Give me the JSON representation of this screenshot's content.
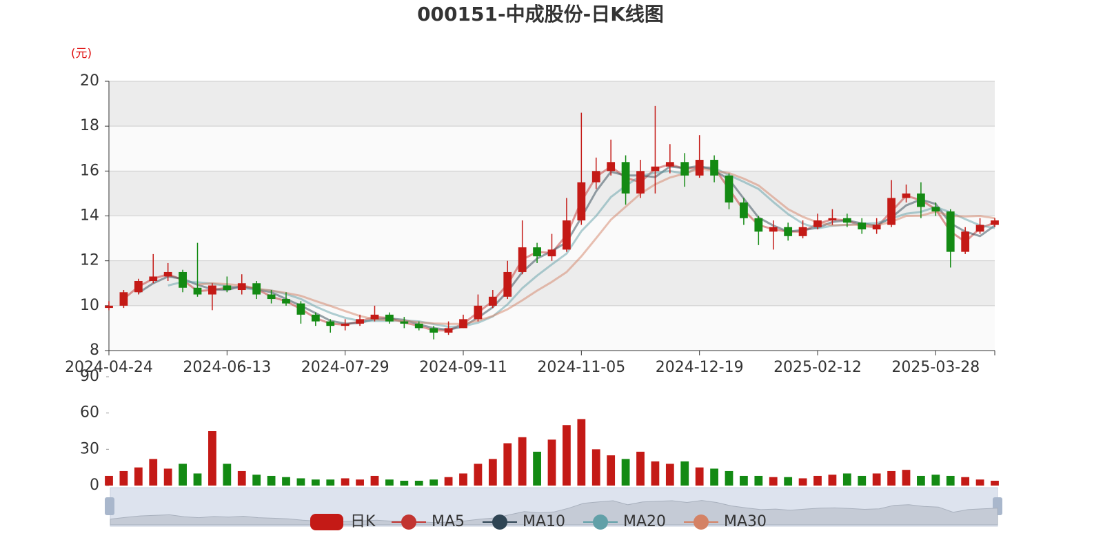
{
  "chart_data": {
    "type": "candlestick",
    "title": "000151-中成股份-日K线图",
    "y_unit": "(元)",
    "categories": [
      "2024-04-24",
      null,
      null,
      null,
      null,
      null,
      null,
      null,
      "2024-06-13",
      null,
      null,
      null,
      null,
      null,
      null,
      null,
      "2024-07-29",
      null,
      null,
      null,
      null,
      null,
      null,
      null,
      "2024-09-11",
      null,
      null,
      null,
      null,
      null,
      null,
      null,
      "2024-11-05",
      null,
      null,
      null,
      null,
      null,
      null,
      null,
      "2024-12-19",
      null,
      null,
      null,
      null,
      null,
      null,
      null,
      "2025-02-12",
      null,
      null,
      null,
      null,
      null,
      null,
      null,
      "2025-03-28",
      null,
      null,
      null,
      null
    ],
    "ylim": [
      8,
      20
    ],
    "yticks": [
      8,
      10,
      12,
      14,
      16,
      18,
      20
    ],
    "grid": true,
    "series": [
      {
        "name": "日K",
        "color": "#c41a16",
        "down_color": "#138a13",
        "open": [
          9.9,
          10.0,
          10.6,
          11.1,
          11.3,
          11.5,
          10.8,
          10.5,
          10.9,
          10.7,
          11.0,
          10.5,
          10.3,
          10.1,
          9.6,
          9.3,
          9.1,
          9.2,
          9.4,
          9.6,
          9.3,
          9.2,
          9.0,
          8.8,
          9.0,
          9.4,
          10.0,
          10.4,
          11.5,
          12.6,
          12.2,
          12.5,
          13.8,
          15.5,
          16.0,
          16.4,
          15.0,
          16.0,
          16.2,
          16.4,
          15.8,
          16.5,
          15.8,
          14.6,
          13.9,
          13.3,
          13.5,
          13.1,
          13.5,
          13.8,
          13.9,
          13.7,
          13.4,
          13.6,
          14.8,
          15.0,
          14.4,
          14.2,
          12.4,
          13.3,
          13.6
        ],
        "close": [
          10.0,
          10.6,
          11.1,
          11.3,
          11.5,
          10.8,
          10.5,
          10.9,
          10.7,
          11.0,
          10.5,
          10.3,
          10.1,
          9.6,
          9.3,
          9.1,
          9.2,
          9.4,
          9.6,
          9.3,
          9.2,
          9.0,
          8.8,
          9.0,
          9.4,
          10.0,
          10.4,
          11.5,
          12.6,
          12.2,
          12.5,
          13.8,
          15.5,
          16.0,
          16.4,
          15.0,
          16.0,
          16.2,
          16.4,
          15.8,
          16.5,
          15.8,
          14.6,
          13.9,
          13.3,
          13.5,
          13.1,
          13.5,
          13.8,
          13.9,
          13.7,
          13.4,
          13.6,
          14.8,
          15.0,
          14.4,
          14.2,
          12.4,
          13.3,
          13.6,
          13.8
        ],
        "high": [
          10.2,
          10.7,
          11.2,
          12.3,
          11.9,
          11.6,
          12.8,
          11.0,
          11.3,
          11.4,
          11.1,
          10.7,
          10.6,
          10.2,
          9.7,
          9.4,
          9.4,
          9.6,
          10.0,
          9.7,
          9.5,
          9.3,
          9.1,
          9.3,
          9.6,
          10.5,
          10.7,
          12.0,
          13.8,
          12.8,
          13.2,
          14.8,
          18.6,
          16.6,
          17.4,
          16.7,
          16.5,
          18.9,
          17.2,
          16.8,
          17.6,
          16.7,
          15.9,
          14.8,
          14.0,
          13.8,
          13.7,
          13.8,
          14.1,
          14.3,
          14.1,
          13.9,
          13.9,
          15.6,
          15.4,
          15.5,
          14.6,
          14.3,
          13.5,
          13.9,
          13.9
        ],
        "low": [
          9.8,
          9.9,
          10.5,
          11.0,
          11.1,
          10.6,
          10.4,
          9.8,
          10.6,
          10.5,
          10.3,
          10.1,
          10.0,
          9.2,
          9.1,
          8.8,
          8.9,
          9.1,
          9.3,
          9.2,
          9.0,
          8.9,
          8.5,
          8.7,
          9.0,
          9.3,
          9.9,
          10.3,
          11.4,
          11.9,
          12.0,
          12.4,
          13.6,
          15.2,
          15.8,
          14.5,
          14.8,
          15.0,
          15.9,
          15.3,
          15.7,
          15.5,
          14.3,
          13.6,
          12.7,
          12.5,
          12.9,
          13.0,
          13.4,
          13.6,
          13.5,
          13.2,
          13.2,
          13.5,
          14.6,
          13.9,
          14.0,
          11.7,
          12.3,
          13.2,
          13.5
        ]
      },
      {
        "name": "MA5",
        "color": "#c23531",
        "values": [
          null,
          10.3,
          10.85,
          11.2,
          11.4,
          11.15,
          10.65,
          10.7,
          10.8,
          10.85,
          10.75,
          10.4,
          10.2,
          9.85,
          9.45,
          9.2,
          9.15,
          9.3,
          9.5,
          9.45,
          9.25,
          9.1,
          8.9,
          8.9,
          9.2,
          9.7,
          10.2,
          10.95,
          12.05,
          12.4,
          12.35,
          13.15,
          14.65,
          15.75,
          16.2,
          15.7,
          15.5,
          16.1,
          16.3,
          16.1,
          16.15,
          16.15,
          15.2,
          14.25,
          13.6,
          13.4,
          13.3,
          13.3,
          13.65,
          13.85,
          13.8,
          13.55,
          13.5,
          14.2,
          14.9,
          14.7,
          14.3,
          13.3,
          12.85,
          13.45,
          13.7
        ]
      },
      {
        "name": "MA10",
        "color": "#2f4554",
        "values": [
          null,
          null,
          10.57,
          11.0,
          11.3,
          11.2,
          10.93,
          10.73,
          10.7,
          10.87,
          10.73,
          10.6,
          10.3,
          10.0,
          9.67,
          9.33,
          9.2,
          9.23,
          9.4,
          9.43,
          9.37,
          9.17,
          9.0,
          8.93,
          9.07,
          9.47,
          9.93,
          10.63,
          11.5,
          12.1,
          12.43,
          12.83,
          13.93,
          15.1,
          15.97,
          15.8,
          15.8,
          15.73,
          16.2,
          16.13,
          16.23,
          16.03,
          15.63,
          14.77,
          13.93,
          13.57,
          13.3,
          13.37,
          13.47,
          13.73,
          13.8,
          13.67,
          13.57,
          13.93,
          14.47,
          14.73,
          14.53,
          13.67,
          13.3,
          13.1,
          13.57
        ]
      },
      {
        "name": "MA20",
        "color": "#61a0a8",
        "values": [
          null,
          null,
          null,
          null,
          10.9,
          11.06,
          11.04,
          10.98,
          10.88,
          10.78,
          10.72,
          10.68,
          10.52,
          10.3,
          9.96,
          9.68,
          9.46,
          9.32,
          9.32,
          9.32,
          9.34,
          9.3,
          9.18,
          9.06,
          9.08,
          9.24,
          9.52,
          10.06,
          10.78,
          11.34,
          11.84,
          12.32,
          13.32,
          14.0,
          14.84,
          15.34,
          15.78,
          15.92,
          16.0,
          15.88,
          16.18,
          16.14,
          15.82,
          15.52,
          15.2,
          14.62,
          14.08,
          13.66,
          13.44,
          13.56,
          13.6,
          13.66,
          13.68,
          13.88,
          14.1,
          14.18,
          14.4,
          14.16,
          13.86,
          13.58,
          13.46
        ]
      },
      {
        "name": "MA30",
        "color": "#d48265",
        "values": [
          null,
          null,
          null,
          null,
          null,
          null,
          10.94,
          11.0,
          10.96,
          10.91,
          10.76,
          10.67,
          10.57,
          10.44,
          10.21,
          9.99,
          9.76,
          9.54,
          9.39,
          9.36,
          9.33,
          9.26,
          9.21,
          9.19,
          9.19,
          9.33,
          9.54,
          9.84,
          10.24,
          10.67,
          11.06,
          11.5,
          12.2,
          13.01,
          13.83,
          14.41,
          14.99,
          15.41,
          15.71,
          15.89,
          16.11,
          16.01,
          15.91,
          15.66,
          15.36,
          14.83,
          14.3,
          13.96,
          13.71,
          13.58,
          13.61,
          13.6,
          13.57,
          13.74,
          14.0,
          14.01,
          14.19,
          14.0,
          13.98,
          14.0,
          13.9
        ]
      }
    ],
    "volume": {
      "values": [
        8,
        12,
        15,
        22,
        14,
        18,
        10,
        45,
        18,
        12,
        9,
        8,
        7,
        6,
        5,
        5,
        6,
        5,
        8,
        5,
        4,
        4,
        5,
        7,
        10,
        18,
        22,
        35,
        40,
        28,
        38,
        50,
        55,
        30,
        25,
        22,
        28,
        20,
        18,
        20,
        15,
        14,
        12,
        8,
        8,
        7,
        7,
        6,
        8,
        9,
        10,
        8,
        10,
        12,
        13,
        8,
        9,
        8,
        7,
        5,
        4
      ],
      "ylim": [
        0,
        90
      ],
      "yticks": [
        0,
        30,
        60,
        90
      ]
    }
  }
}
